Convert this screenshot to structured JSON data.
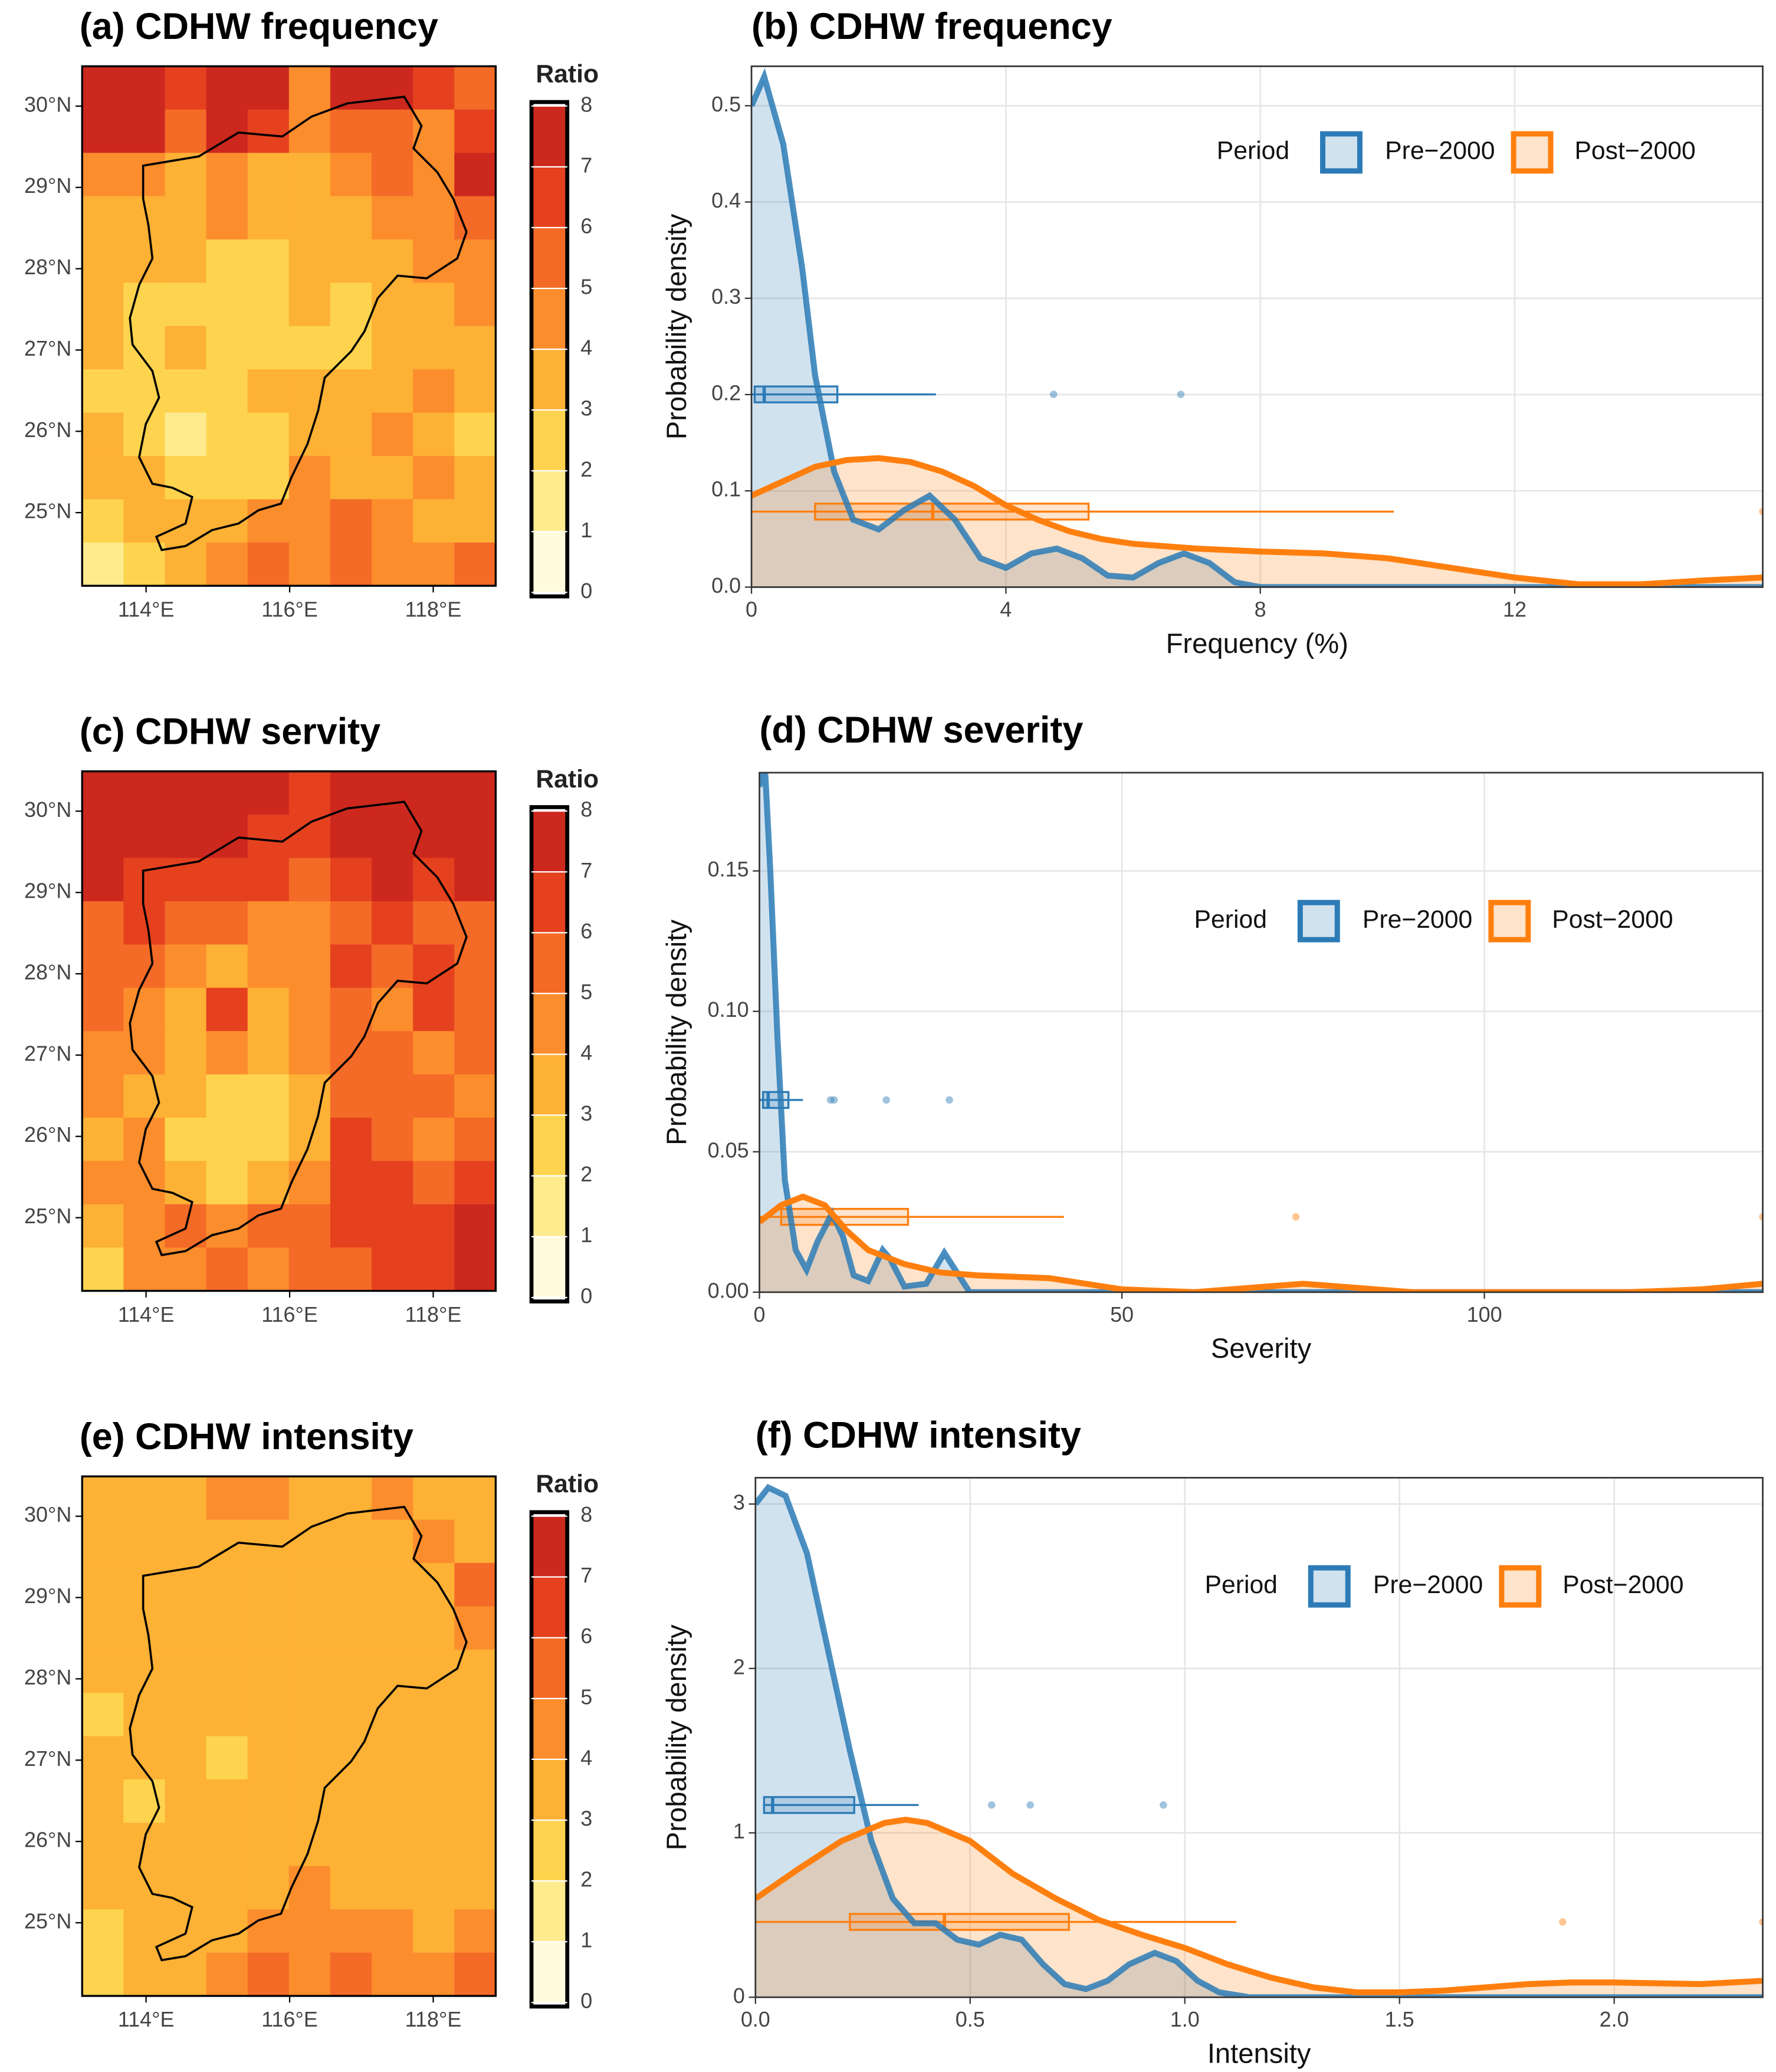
{
  "chart_data": [
    {
      "type": "heatmap",
      "title": "(a) CDHW frequency",
      "colorbar_title": "Ratio",
      "colors": [
        "#fffbdc",
        "#feeb8e",
        "#fed44f",
        "#fdb135",
        "#fc8d2d",
        "#f46a27",
        "#e5411f",
        "#cc281e"
      ],
      "cbticks": [
        0,
        1,
        2,
        3,
        4,
        5,
        6,
        7,
        8
      ],
      "xlim": [
        113.11,
        118.87
      ],
      "ylim": [
        24.1,
        30.49
      ],
      "xticks": [
        {
          "value": 114,
          "label": "114°E"
        },
        {
          "value": 116,
          "label": "116°E"
        },
        {
          "value": 118,
          "label": "118°E"
        }
      ],
      "yticks": [
        {
          "value": 25,
          "label": "25°N"
        },
        {
          "value": 26,
          "label": "26°N"
        },
        {
          "value": 27,
          "label": "27°N"
        },
        {
          "value": 28,
          "label": "28°N"
        },
        {
          "value": 29,
          "label": "29°N"
        },
        {
          "value": 30,
          "label": "30°N"
        }
      ],
      "values": [
        [
          7,
          7,
          6,
          7,
          7,
          4,
          7,
          7,
          6,
          5
        ],
        [
          7,
          7,
          5,
          7,
          6,
          4,
          5,
          5,
          4,
          6
        ],
        [
          4,
          4,
          3,
          4,
          3,
          3,
          4,
          5,
          4,
          7
        ],
        [
          3,
          3,
          3,
          4,
          3,
          3,
          3,
          4,
          4,
          5
        ],
        [
          3,
          3,
          3,
          2,
          2,
          3,
          3,
          3,
          4,
          4
        ],
        [
          3,
          2,
          2,
          2,
          2,
          3,
          2,
          3,
          3,
          4
        ],
        [
          3,
          2,
          3,
          2,
          2,
          2,
          2,
          3,
          3,
          3
        ],
        [
          2,
          2,
          2,
          2,
          3,
          3,
          3,
          3,
          4,
          3
        ],
        [
          3,
          2,
          1,
          2,
          2,
          3,
          3,
          4,
          3,
          2
        ],
        [
          3,
          3,
          2,
          2,
          2,
          4,
          3,
          3,
          4,
          3
        ],
        [
          2,
          3,
          3,
          3,
          4,
          4,
          5,
          4,
          3,
          3
        ],
        [
          1,
          2,
          3,
          4,
          5,
          4,
          5,
          4,
          4,
          5
        ]
      ]
    },
    {
      "type": "density",
      "title": "(b) CDHW frequency",
      "xlabel": "Frequency (%)",
      "ylabel": "Probability density",
      "legend_title": "Period",
      "grid": true,
      "xlim": [
        0,
        15.9
      ],
      "ylim": [
        0,
        0.541
      ],
      "xticks": [
        0,
        4,
        8,
        12
      ],
      "yticks": [
        {
          "value": 0,
          "label": "0.0"
        },
        0.1,
        0.2,
        0.3,
        0.4,
        0.5
      ],
      "series": [
        {
          "name": "Pre−2000",
          "color": "#2c7bb6",
          "x": [
            0,
            0.2,
            0.5,
            0.8,
            1.0,
            1.3,
            1.6,
            2.0,
            2.4,
            2.8,
            3.2,
            3.6,
            4.0,
            4.4,
            4.8,
            5.2,
            5.6,
            6.0,
            6.4,
            6.8,
            7.2,
            7.6,
            8.0,
            15.9
          ],
          "values": [
            0.5,
            0.53,
            0.46,
            0.33,
            0.22,
            0.12,
            0.07,
            0.06,
            0.08,
            0.095,
            0.07,
            0.03,
            0.02,
            0.035,
            0.04,
            0.03,
            0.012,
            0.01,
            0.025,
            0.035,
            0.025,
            0.005,
            0,
            0
          ],
          "box": {
            "whisker_low": 0,
            "q1": 0.05,
            "median": 0.2,
            "q3": 1.35,
            "whisker_high": 2.9,
            "outliers": [
              4.75,
              6.75
            ]
          }
        },
        {
          "name": "Post−2000",
          "color": "#ff7f0e",
          "x": [
            0,
            0.5,
            1,
            1.5,
            2,
            2.5,
            3,
            3.5,
            4,
            4.5,
            5,
            5.5,
            6,
            7,
            8,
            9,
            10,
            11,
            12,
            13,
            14,
            15,
            15.9
          ],
          "values": [
            0.095,
            0.11,
            0.125,
            0.132,
            0.134,
            0.13,
            0.12,
            0.105,
            0.085,
            0.07,
            0.058,
            0.05,
            0.045,
            0.04,
            0.037,
            0.035,
            0.03,
            0.02,
            0.01,
            0.003,
            0.003,
            0.007,
            0.01
          ],
          "box": {
            "whisker_low": 0,
            "q1": 1.0,
            "median": 2.85,
            "q3": 5.3,
            "whisker_high": 10.1,
            "outliers": [
              15.9
            ]
          }
        }
      ]
    },
    {
      "type": "heatmap",
      "title": "(c) CDHW servity",
      "colorbar_title": "Ratio",
      "colors": [
        "#fffbdc",
        "#feeb8e",
        "#fed44f",
        "#fdb135",
        "#fc8d2d",
        "#f46a27",
        "#e5411f",
        "#cc281e"
      ],
      "cbticks": [
        0,
        1,
        2,
        3,
        4,
        5,
        6,
        7,
        8
      ],
      "xlim": [
        113.11,
        118.87
      ],
      "ylim": [
        24.1,
        30.49
      ],
      "xticks": [
        {
          "value": 114,
          "label": "114°E"
        },
        {
          "value": 116,
          "label": "116°E"
        },
        {
          "value": 118,
          "label": "118°E"
        }
      ],
      "yticks": [
        {
          "value": 25,
          "label": "25°N"
        },
        {
          "value": 26,
          "label": "26°N"
        },
        {
          "value": 27,
          "label": "27°N"
        },
        {
          "value": 28,
          "label": "28°N"
        },
        {
          "value": 29,
          "label": "29°N"
        },
        {
          "value": 30,
          "label": "30°N"
        }
      ],
      "values": [
        [
          7,
          7,
          7,
          7,
          7,
          6,
          7,
          7,
          7,
          7
        ],
        [
          7,
          7,
          7,
          7,
          6,
          6,
          7,
          7,
          7,
          7
        ],
        [
          7,
          6,
          6,
          6,
          6,
          5,
          6,
          7,
          6,
          7
        ],
        [
          5,
          6,
          5,
          5,
          4,
          4,
          5,
          6,
          5,
          5
        ],
        [
          5,
          5,
          4,
          3,
          4,
          4,
          6,
          5,
          6,
          5
        ],
        [
          5,
          4,
          3,
          6,
          3,
          4,
          5,
          4,
          6,
          5
        ],
        [
          4,
          4,
          3,
          4,
          3,
          4,
          5,
          5,
          4,
          5
        ],
        [
          4,
          3,
          3,
          2,
          2,
          3,
          5,
          5,
          5,
          4
        ],
        [
          3,
          4,
          2,
          2,
          2,
          3,
          6,
          5,
          4,
          5
        ],
        [
          4,
          4,
          3,
          2,
          3,
          4,
          6,
          6,
          5,
          6
        ],
        [
          3,
          4,
          5,
          4,
          5,
          5,
          6,
          6,
          6,
          7
        ],
        [
          2,
          4,
          4,
          5,
          4,
          5,
          5,
          6,
          6,
          7
        ]
      ]
    },
    {
      "type": "density",
      "title": "(d) CDHW severity",
      "xlabel": "Severity",
      "ylabel": "Probability density",
      "legend_title": "Period",
      "grid": true,
      "xlim": [
        0,
        138.4
      ],
      "ylim": [
        0,
        0.185
      ],
      "xticks": [
        0,
        50,
        100
      ],
      "yticks": [
        {
          "value": 0,
          "label": "0.00"
        },
        0.05,
        {
          "value": 0.1,
          "label": "0.10"
        },
        0.15
      ],
      "series": [
        {
          "name": "Pre−2000",
          "color": "#2c7bb6",
          "x": [
            0,
            0.7,
            1.5,
            2.5,
            3.5,
            5,
            6.5,
            8,
            10,
            11.5,
            13,
            15,
            17,
            18,
            20,
            23,
            25.5,
            27,
            29,
            138.4
          ],
          "values": [
            0.18,
            0.19,
            0.15,
            0.09,
            0.04,
            0.015,
            0.008,
            0.018,
            0.028,
            0.02,
            0.006,
            0.004,
            0.015,
            0.012,
            0.002,
            0.003,
            0.014,
            0.008,
            0,
            0
          ],
          "box": {
            "whisker_low": 0,
            "q1": 0.5,
            "median": 1.2,
            "q3": 4,
            "whisker_high": 6,
            "outliers": [
              9.8,
              10.3,
              17.5,
              26.2
            ]
          }
        },
        {
          "name": "Post−2000",
          "color": "#ff7f0e",
          "x": [
            0,
            3,
            6,
            9,
            12,
            15,
            20,
            25,
            30,
            40,
            45,
            50,
            60,
            70,
            75,
            80,
            90,
            120,
            130,
            138.4
          ],
          "values": [
            0.025,
            0.031,
            0.034,
            0.031,
            0.022,
            0.015,
            0.01,
            0.007,
            0.006,
            0.005,
            0.003,
            0.001,
            0,
            0.002,
            0.003,
            0.002,
            0,
            0,
            0.001,
            0.003
          ],
          "box": {
            "whisker_low": 0,
            "q1": 3,
            "median": 10,
            "q3": 20.5,
            "whisker_high": 42,
            "outliers": [
              74,
              138.4
            ]
          }
        }
      ]
    },
    {
      "type": "heatmap",
      "title": "(e) CDHW intensity",
      "colorbar_title": "Ratio",
      "colors": [
        "#fffbdc",
        "#feeb8e",
        "#fed44f",
        "#fdb135",
        "#fc8d2d",
        "#f46a27",
        "#e5411f",
        "#cc281e"
      ],
      "cbticks": [
        0,
        1,
        2,
        3,
        4,
        5,
        6,
        7,
        8
      ],
      "xlim": [
        113.11,
        118.87
      ],
      "ylim": [
        24.1,
        30.49
      ],
      "xticks": [
        {
          "value": 114,
          "label": "114°E"
        },
        {
          "value": 116,
          "label": "116°E"
        },
        {
          "value": 118,
          "label": "118°E"
        }
      ],
      "yticks": [
        {
          "value": 25,
          "label": "25°N"
        },
        {
          "value": 26,
          "label": "26°N"
        },
        {
          "value": 27,
          "label": "27°N"
        },
        {
          "value": 28,
          "label": "28°N"
        },
        {
          "value": 29,
          "label": "29°N"
        },
        {
          "value": 30,
          "label": "30°N"
        }
      ],
      "values": [
        [
          3,
          3,
          3,
          4,
          4,
          3,
          3,
          4,
          3,
          3
        ],
        [
          3,
          3,
          3,
          3,
          3,
          3,
          3,
          3,
          4,
          3
        ],
        [
          3,
          3,
          3,
          3,
          3,
          3,
          3,
          3,
          3,
          5
        ],
        [
          3,
          3,
          3,
          3,
          3,
          3,
          3,
          3,
          3,
          4
        ],
        [
          3,
          3,
          3,
          3,
          3,
          3,
          3,
          3,
          3,
          3
        ],
        [
          2,
          3,
          3,
          3,
          3,
          3,
          3,
          3,
          3,
          3
        ],
        [
          3,
          3,
          3,
          2,
          3,
          3,
          3,
          3,
          3,
          3
        ],
        [
          3,
          2,
          3,
          3,
          3,
          3,
          3,
          3,
          3,
          3
        ],
        [
          3,
          3,
          3,
          3,
          3,
          3,
          3,
          3,
          3,
          3
        ],
        [
          3,
          3,
          3,
          3,
          3,
          4,
          3,
          3,
          3,
          3
        ],
        [
          2,
          3,
          3,
          3,
          4,
          4,
          4,
          4,
          3,
          4
        ],
        [
          2,
          3,
          3,
          4,
          5,
          4,
          5,
          4,
          4,
          5
        ]
      ]
    },
    {
      "type": "density",
      "title": "(f) CDHW intensity",
      "xlabel": "Intensity",
      "ylabel": "Probability density",
      "legend_title": "Period",
      "grid": true,
      "xlim": [
        0,
        2.346
      ],
      "ylim": [
        0,
        3.16
      ],
      "xticks": [
        {
          "value": 0,
          "label": "0.0"
        },
        0.5,
        {
          "value": 1,
          "label": "1.0"
        },
        1.5,
        {
          "value": 2,
          "label": "2.0"
        }
      ],
      "yticks": [
        0,
        1,
        2,
        3
      ],
      "series": [
        {
          "name": "Pre−2000",
          "color": "#2c7bb6",
          "x": [
            0,
            0.03,
            0.07,
            0.12,
            0.17,
            0.22,
            0.27,
            0.32,
            0.37,
            0.42,
            0.47,
            0.52,
            0.57,
            0.62,
            0.67,
            0.72,
            0.77,
            0.82,
            0.87,
            0.93,
            0.98,
            1.03,
            1.08,
            1.15,
            2.346
          ],
          "values": [
            3,
            3.1,
            3.05,
            2.7,
            2.1,
            1.5,
            0.95,
            0.6,
            0.45,
            0.45,
            0.35,
            0.32,
            0.38,
            0.35,
            0.2,
            0.08,
            0.05,
            0.1,
            0.2,
            0.27,
            0.22,
            0.1,
            0.03,
            0,
            0
          ],
          "box": {
            "whisker_low": 0.02,
            "q1": 0.02,
            "median": 0.04,
            "q3": 0.23,
            "whisker_high": 0.38,
            "outliers": [
              0.55,
              0.64,
              0.95
            ]
          }
        },
        {
          "name": "Post−2000",
          "color": "#ff7f0e",
          "x": [
            0,
            0.1,
            0.2,
            0.3,
            0.35,
            0.4,
            0.5,
            0.6,
            0.7,
            0.8,
            0.9,
            1.0,
            1.1,
            1.2,
            1.3,
            1.4,
            1.5,
            1.6,
            1.7,
            1.8,
            1.9,
            2.0,
            2.2,
            2.346
          ],
          "values": [
            0.6,
            0.78,
            0.95,
            1.06,
            1.08,
            1.06,
            0.95,
            0.75,
            0.6,
            0.47,
            0.38,
            0.3,
            0.2,
            0.12,
            0.06,
            0.03,
            0.03,
            0.04,
            0.06,
            0.08,
            0.09,
            0.09,
            0.08,
            0.1
          ],
          "box": {
            "whisker_low": 0,
            "q1": 0.22,
            "median": 0.44,
            "q3": 0.73,
            "whisker_high": 1.12,
            "outliers": [
              1.88,
              2.346
            ]
          }
        }
      ]
    }
  ]
}
